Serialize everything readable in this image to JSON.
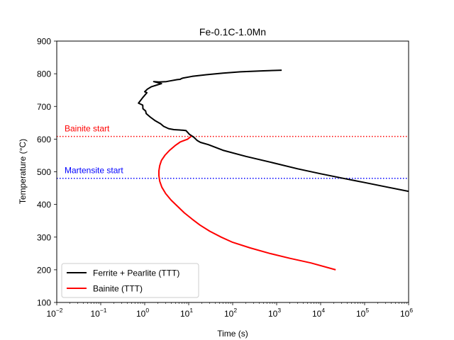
{
  "chart_data": {
    "type": "line",
    "title": "Fe-0.1C-1.0Mn",
    "xlabel": "Time (s)",
    "ylabel": "Temperature (°C)",
    "xscale": "log",
    "xlim": [
      0.01,
      1000000
    ],
    "ylim": [
      100,
      900
    ],
    "x_ticks": [
      {
        "value": 0.01,
        "base": "10",
        "exp": "−2"
      },
      {
        "value": 0.1,
        "base": "10",
        "exp": "−1"
      },
      {
        "value": 1,
        "base": "10",
        "exp": "0"
      },
      {
        "value": 10,
        "base": "10",
        "exp": "1"
      },
      {
        "value": 100,
        "base": "10",
        "exp": "2"
      },
      {
        "value": 1000,
        "base": "10",
        "exp": "3"
      },
      {
        "value": 10000,
        "base": "10",
        "exp": "4"
      },
      {
        "value": 100000,
        "base": "10",
        "exp": "5"
      },
      {
        "value": 1000000,
        "base": "10",
        "exp": "6"
      }
    ],
    "y_ticks": [
      100,
      200,
      300,
      400,
      500,
      600,
      700,
      800,
      900
    ],
    "grid": false,
    "legend_position": "lower-left",
    "series": [
      {
        "name": "Ferrite + Pearlite (TTT)",
        "color": "#000000",
        "points": [
          [
            1300,
            811
          ],
          [
            500,
            809
          ],
          [
            150,
            806
          ],
          [
            60,
            802
          ],
          [
            25,
            797
          ],
          [
            12,
            792
          ],
          [
            7.5,
            787
          ],
          [
            6.8,
            785
          ],
          [
            6.4,
            783
          ],
          [
            5.5,
            782
          ],
          [
            3.7,
            778
          ],
          [
            3.1,
            776
          ],
          [
            2.1,
            775
          ],
          [
            1.6,
            776
          ],
          [
            2.4,
            770
          ],
          [
            1.4,
            760
          ],
          [
            1.15,
            753
          ],
          [
            1.0,
            745
          ],
          [
            1.12,
            742
          ],
          [
            0.9,
            727
          ],
          [
            0.72,
            710
          ],
          [
            0.9,
            704
          ],
          [
            0.91,
            693
          ],
          [
            1.05,
            686
          ],
          [
            1.08,
            678
          ],
          [
            1.35,
            667
          ],
          [
            1.7,
            657
          ],
          [
            2.3,
            647
          ],
          [
            2.7,
            639
          ],
          [
            3.5,
            632
          ],
          [
            4.6,
            629
          ],
          [
            7.5,
            627
          ],
          [
            8.7,
            626
          ],
          [
            10.5,
            614
          ],
          [
            13,
            606
          ],
          [
            15.5,
            596
          ],
          [
            18.5,
            590
          ],
          [
            28,
            583
          ],
          [
            60,
            566
          ],
          [
            200,
            547
          ],
          [
            800,
            528
          ],
          [
            3000,
            509
          ],
          [
            10000,
            494
          ],
          [
            30000,
            481
          ],
          [
            100000,
            467
          ],
          [
            300000,
            454
          ],
          [
            1000000,
            440
          ]
        ]
      },
      {
        "name": "Bainite (TTT)",
        "color": "#ff0000",
        "points": [
          [
            11.5,
            609
          ],
          [
            9.5,
            600
          ],
          [
            7.6,
            595
          ],
          [
            6.4,
            591
          ],
          [
            4.9,
            580
          ],
          [
            3.7,
            566
          ],
          [
            2.9,
            551
          ],
          [
            2.4,
            535
          ],
          [
            2.2,
            519
          ],
          [
            2.1,
            503
          ],
          [
            2.1,
            488
          ],
          [
            2.2,
            471
          ],
          [
            2.45,
            453
          ],
          [
            3.0,
            433
          ],
          [
            4.0,
            413
          ],
          [
            5.7,
            393
          ],
          [
            8.0,
            374
          ],
          [
            12,
            355
          ],
          [
            18,
            337
          ],
          [
            30,
            318
          ],
          [
            55,
            300
          ],
          [
            100,
            284
          ],
          [
            250,
            267
          ],
          [
            700,
            250
          ],
          [
            2000,
            235
          ],
          [
            6000,
            221
          ],
          [
            22000,
            200
          ]
        ]
      }
    ],
    "reference_lines": [
      {
        "label": "Bainite start",
        "y": 608,
        "color": "#ff0000",
        "style": "dotted"
      },
      {
        "label": "Martensite start",
        "y": 480,
        "color": "#0000ff",
        "style": "dotted"
      }
    ]
  }
}
